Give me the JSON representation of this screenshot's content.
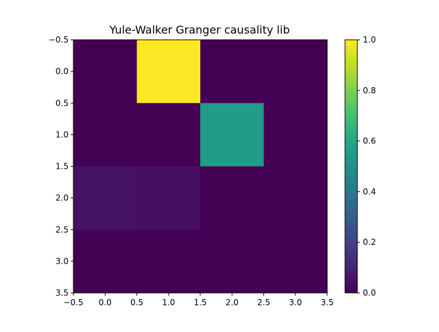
{
  "chart_data": {
    "type": "heatmap",
    "title": "Yule-Walker Granger causality lib",
    "xlabel": "",
    "ylabel": "",
    "rows": 4,
    "cols": 4,
    "values": [
      [
        0.0,
        1.0,
        0.0,
        0.0
      ],
      [
        0.0,
        0.0,
        0.55,
        0.0
      ],
      [
        0.05,
        0.04,
        0.0,
        0.0
      ],
      [
        0.0,
        0.0,
        0.0,
        0.0
      ]
    ],
    "xlim": [
      -0.5,
      3.5
    ],
    "ylim": [
      3.5,
      -0.5
    ],
    "x_ticks": [
      -0.5,
      0.0,
      0.5,
      1.0,
      1.5,
      2.0,
      2.5,
      3.0,
      3.5
    ],
    "y_ticks": [
      -0.5,
      0.0,
      0.5,
      1.0,
      1.5,
      2.0,
      2.5,
      3.0,
      3.5
    ],
    "x_tick_labels": [
      "−0.5",
      "0.0",
      "0.5",
      "1.0",
      "1.5",
      "2.0",
      "2.5",
      "3.0",
      "3.5"
    ],
    "y_tick_labels": [
      "−0.5",
      "0.0",
      "0.5",
      "1.0",
      "1.5",
      "2.0",
      "2.5",
      "3.0",
      "3.5"
    ],
    "colorbar": {
      "colormap": "viridis",
      "range": [
        0.0,
        1.0
      ],
      "ticks": [
        0.0,
        0.2,
        0.4,
        0.6,
        0.8,
        1.0
      ],
      "tick_labels": [
        "0.0",
        "0.2",
        "0.4",
        "0.6",
        "0.8",
        "1.0"
      ]
    },
    "grid": false
  }
}
